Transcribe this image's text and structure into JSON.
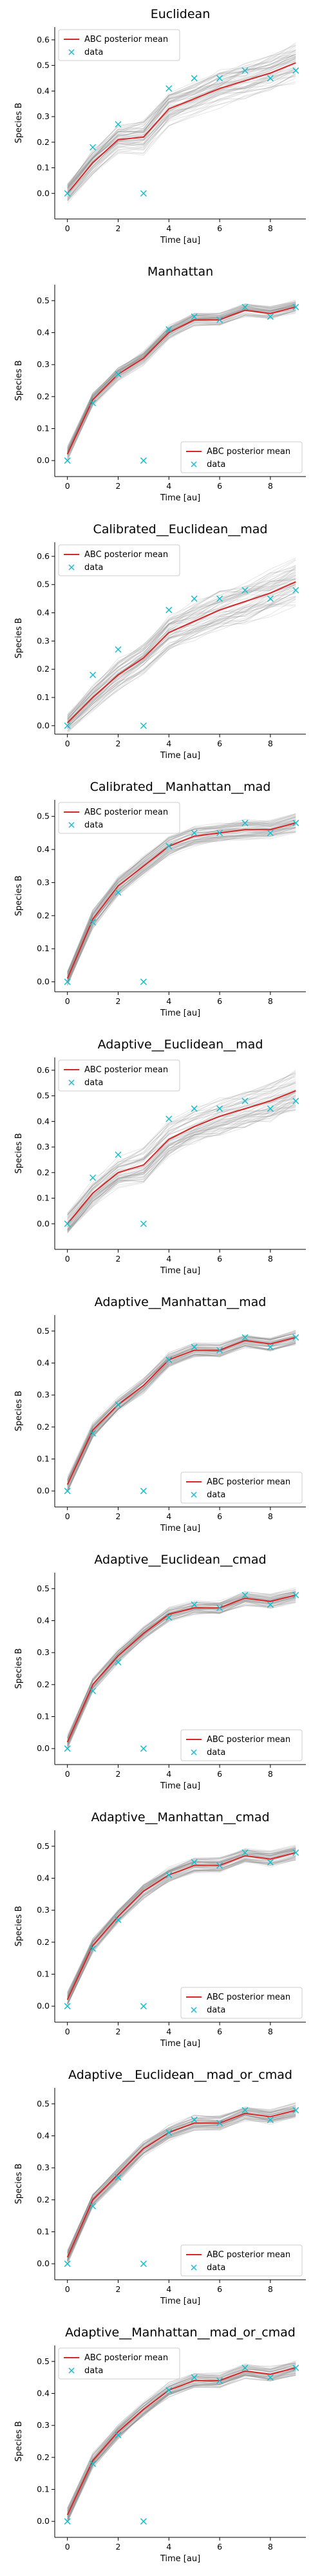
{
  "figure": {
    "xlabel": "Time [au]",
    "ylabel": "Species B",
    "legend_mean_label": "ABC posterior mean",
    "legend_data_label": "data",
    "colors": {
      "mean": "#d62728",
      "data": "#17becf",
      "samples": "#888888"
    }
  },
  "chart_data": [
    {
      "type": "line",
      "title": "Euclidean",
      "legend": "top-left",
      "ylim": [
        -0.1,
        0.65
      ],
      "yticks": [
        "0.0",
        "0.1",
        "0.2",
        "0.3",
        "0.4",
        "0.5",
        "0.6"
      ],
      "ytick_values": [
        0,
        0.1,
        0.2,
        0.3,
        0.4,
        0.5,
        0.6
      ],
      "xlim": [
        -0.5,
        9.4
      ],
      "xticks": [
        "0",
        "2",
        "4",
        "6",
        "8"
      ],
      "xtick_values": [
        0,
        2,
        4,
        6,
        8
      ],
      "x": [
        0,
        1,
        2,
        3,
        4,
        5,
        6,
        7,
        8,
        9
      ],
      "mean": [
        0.0,
        0.12,
        0.21,
        0.22,
        0.33,
        0.37,
        0.41,
        0.44,
        0.47,
        0.51
      ],
      "spread": [
        0.04,
        0.045,
        0.05,
        0.06,
        0.06,
        0.06,
        0.065,
        0.065,
        0.07,
        0.07
      ],
      "data": [
        0.0,
        0.18,
        0.27,
        0.0,
        0.41,
        0.45,
        0.45,
        0.48,
        0.45,
        0.48
      ]
    },
    {
      "type": "line",
      "title": "Manhattan",
      "legend": "bottom-right",
      "ylim": [
        -0.05,
        0.55
      ],
      "yticks": [
        "0.0",
        "0.1",
        "0.2",
        "0.3",
        "0.4",
        "0.5"
      ],
      "ytick_values": [
        0,
        0.1,
        0.2,
        0.3,
        0.4,
        0.5
      ],
      "xlim": [
        -0.5,
        9.4
      ],
      "xticks": [
        "0",
        "2",
        "4",
        "6",
        "8"
      ],
      "xtick_values": [
        0,
        2,
        4,
        6,
        8
      ],
      "x": [
        0,
        1,
        2,
        3,
        4,
        5,
        6,
        7,
        8,
        9
      ],
      "mean": [
        0.02,
        0.19,
        0.27,
        0.32,
        0.4,
        0.44,
        0.44,
        0.47,
        0.46,
        0.48
      ],
      "spread": [
        0.02,
        0.02,
        0.02,
        0.02,
        0.02,
        0.02,
        0.02,
        0.02,
        0.02,
        0.02
      ],
      "data": [
        0.0,
        0.18,
        0.27,
        0.0,
        0.41,
        0.45,
        0.44,
        0.48,
        0.45,
        0.48
      ]
    },
    {
      "type": "line",
      "title": "Calibrated__Euclidean__mad",
      "legend": "top-left",
      "ylim": [
        -0.03,
        0.65
      ],
      "yticks": [
        "0.0",
        "0.1",
        "0.2",
        "0.3",
        "0.4",
        "0.5",
        "0.6"
      ],
      "ytick_values": [
        0,
        0.1,
        0.2,
        0.3,
        0.4,
        0.5,
        0.6
      ],
      "xlim": [
        -0.5,
        9.4
      ],
      "xticks": [
        "0",
        "2",
        "4",
        "6",
        "8"
      ],
      "xtick_values": [
        0,
        2,
        4,
        6,
        8
      ],
      "x": [
        0,
        1,
        2,
        3,
        4,
        5,
        6,
        7,
        8,
        9
      ],
      "mean": [
        0.01,
        0.1,
        0.18,
        0.24,
        0.33,
        0.37,
        0.41,
        0.44,
        0.47,
        0.51
      ],
      "spread": [
        0.03,
        0.04,
        0.05,
        0.05,
        0.06,
        0.06,
        0.065,
        0.07,
        0.07,
        0.075
      ],
      "data": [
        0.0,
        0.18,
        0.27,
        0.0,
        0.41,
        0.45,
        0.45,
        0.48,
        0.45,
        0.48
      ]
    },
    {
      "type": "line",
      "title": "Calibrated__Manhattan__mad",
      "legend": "top-left",
      "ylim": [
        -0.03,
        0.55
      ],
      "yticks": [
        "0.0",
        "0.1",
        "0.2",
        "0.3",
        "0.4",
        "0.5"
      ],
      "ytick_values": [
        0,
        0.1,
        0.2,
        0.3,
        0.4,
        0.5
      ],
      "xlim": [
        -0.5,
        9.4
      ],
      "xticks": [
        "0",
        "2",
        "4",
        "6",
        "8"
      ],
      "xtick_values": [
        0,
        2,
        4,
        6,
        8
      ],
      "x": [
        0,
        1,
        2,
        3,
        4,
        5,
        6,
        7,
        8,
        9
      ],
      "mean": [
        0.01,
        0.19,
        0.29,
        0.35,
        0.41,
        0.44,
        0.45,
        0.46,
        0.46,
        0.48
      ],
      "spread": [
        0.02,
        0.025,
        0.025,
        0.025,
        0.025,
        0.025,
        0.025,
        0.025,
        0.025,
        0.025
      ],
      "data": [
        0.0,
        0.18,
        0.27,
        0.0,
        0.41,
        0.45,
        0.45,
        0.48,
        0.45,
        0.48
      ]
    },
    {
      "type": "line",
      "title": "Adaptive__Euclidean__mad",
      "legend": "top-left",
      "ylim": [
        -0.1,
        0.65
      ],
      "yticks": [
        "0.0",
        "0.1",
        "0.2",
        "0.3",
        "0.4",
        "0.5",
        "0.6"
      ],
      "ytick_values": [
        0,
        0.1,
        0.2,
        0.3,
        0.4,
        0.5,
        0.6
      ],
      "xlim": [
        -0.5,
        9.4
      ],
      "xticks": [
        "0",
        "2",
        "4",
        "6",
        "8"
      ],
      "xtick_values": [
        0,
        2,
        4,
        6,
        8
      ],
      "x": [
        0,
        1,
        2,
        3,
        4,
        5,
        6,
        7,
        8,
        9
      ],
      "mean": [
        0.0,
        0.12,
        0.2,
        0.23,
        0.33,
        0.38,
        0.42,
        0.45,
        0.48,
        0.52
      ],
      "spread": [
        0.04,
        0.045,
        0.05,
        0.06,
        0.06,
        0.06,
        0.065,
        0.065,
        0.07,
        0.07
      ],
      "data": [
        0.0,
        0.18,
        0.27,
        0.0,
        0.41,
        0.45,
        0.45,
        0.48,
        0.45,
        0.48
      ]
    },
    {
      "type": "line",
      "title": "Adaptive__Manhattan__mad",
      "legend": "bottom-right",
      "ylim": [
        -0.05,
        0.55
      ],
      "yticks": [
        "0.0",
        "0.1",
        "0.2",
        "0.3",
        "0.4",
        "0.5"
      ],
      "ytick_values": [
        0,
        0.1,
        0.2,
        0.3,
        0.4,
        0.5
      ],
      "xlim": [
        -0.5,
        9.4
      ],
      "xticks": [
        "0",
        "2",
        "4",
        "6",
        "8"
      ],
      "xtick_values": [
        0,
        2,
        4,
        6,
        8
      ],
      "x": [
        0,
        1,
        2,
        3,
        4,
        5,
        6,
        7,
        8,
        9
      ],
      "mean": [
        0.02,
        0.19,
        0.27,
        0.33,
        0.41,
        0.44,
        0.44,
        0.47,
        0.46,
        0.48
      ],
      "spread": [
        0.02,
        0.02,
        0.02,
        0.02,
        0.02,
        0.02,
        0.02,
        0.02,
        0.02,
        0.02
      ],
      "data": [
        0.0,
        0.18,
        0.27,
        0.0,
        0.41,
        0.45,
        0.44,
        0.48,
        0.45,
        0.48
      ]
    },
    {
      "type": "line",
      "title": "Adaptive__Euclidean__cmad",
      "legend": "bottom-right",
      "ylim": [
        -0.05,
        0.55
      ],
      "yticks": [
        "0.0",
        "0.1",
        "0.2",
        "0.3",
        "0.4",
        "0.5"
      ],
      "ytick_values": [
        0,
        0.1,
        0.2,
        0.3,
        0.4,
        0.5
      ],
      "xlim": [
        -0.5,
        9.4
      ],
      "xticks": [
        "0",
        "2",
        "4",
        "6",
        "8"
      ],
      "xtick_values": [
        0,
        2,
        4,
        6,
        8
      ],
      "x": [
        0,
        1,
        2,
        3,
        4,
        5,
        6,
        7,
        8,
        9
      ],
      "mean": [
        0.02,
        0.2,
        0.29,
        0.36,
        0.42,
        0.44,
        0.44,
        0.47,
        0.46,
        0.48
      ],
      "spread": [
        0.02,
        0.02,
        0.02,
        0.02,
        0.02,
        0.02,
        0.02,
        0.02,
        0.02,
        0.02
      ],
      "data": [
        0.0,
        0.18,
        0.27,
        0.0,
        0.41,
        0.45,
        0.44,
        0.48,
        0.45,
        0.48
      ]
    },
    {
      "type": "line",
      "title": "Adaptive__Manhattan__cmad",
      "legend": "bottom-right",
      "ylim": [
        -0.05,
        0.55
      ],
      "yticks": [
        "0.0",
        "0.1",
        "0.2",
        "0.3",
        "0.4",
        "0.5"
      ],
      "ytick_values": [
        0,
        0.1,
        0.2,
        0.3,
        0.4,
        0.5
      ],
      "xlim": [
        -0.5,
        9.4
      ],
      "xticks": [
        "0",
        "2",
        "4",
        "6",
        "8"
      ],
      "xtick_values": [
        0,
        2,
        4,
        6,
        8
      ],
      "x": [
        0,
        1,
        2,
        3,
        4,
        5,
        6,
        7,
        8,
        9
      ],
      "mean": [
        0.02,
        0.19,
        0.28,
        0.36,
        0.41,
        0.44,
        0.44,
        0.47,
        0.46,
        0.48
      ],
      "spread": [
        0.02,
        0.02,
        0.02,
        0.02,
        0.02,
        0.02,
        0.02,
        0.02,
        0.02,
        0.02
      ],
      "data": [
        0.0,
        0.18,
        0.27,
        0.0,
        0.41,
        0.45,
        0.44,
        0.48,
        0.45,
        0.48
      ]
    },
    {
      "type": "line",
      "title": "Adaptive__Euclidean__mad_or_cmad",
      "legend": "bottom-right",
      "ylim": [
        -0.05,
        0.55
      ],
      "yticks": [
        "0.0",
        "0.1",
        "0.2",
        "0.3",
        "0.4",
        "0.5"
      ],
      "ytick_values": [
        0,
        0.1,
        0.2,
        0.3,
        0.4,
        0.5
      ],
      "xlim": [
        -0.5,
        9.4
      ],
      "xticks": [
        "0",
        "2",
        "4",
        "6",
        "8"
      ],
      "xtick_values": [
        0,
        2,
        4,
        6,
        8
      ],
      "x": [
        0,
        1,
        2,
        3,
        4,
        5,
        6,
        7,
        8,
        9
      ],
      "mean": [
        0.02,
        0.2,
        0.28,
        0.36,
        0.41,
        0.44,
        0.44,
        0.47,
        0.46,
        0.48
      ],
      "spread": [
        0.02,
        0.02,
        0.02,
        0.02,
        0.02,
        0.02,
        0.02,
        0.02,
        0.02,
        0.02
      ],
      "data": [
        0.0,
        0.18,
        0.27,
        0.0,
        0.41,
        0.45,
        0.44,
        0.48,
        0.45,
        0.48
      ]
    },
    {
      "type": "line",
      "title": "Adaptive__Manhattan__mad_or_cmad",
      "legend": "top-left",
      "ylim": [
        -0.05,
        0.55
      ],
      "yticks": [
        "0.0",
        "0.1",
        "0.2",
        "0.3",
        "0.4",
        "0.5"
      ],
      "ytick_values": [
        0,
        0.1,
        0.2,
        0.3,
        0.4,
        0.5
      ],
      "xlim": [
        -0.5,
        9.4
      ],
      "xticks": [
        "0",
        "2",
        "4",
        "6",
        "8"
      ],
      "xtick_values": [
        0,
        2,
        4,
        6,
        8
      ],
      "x": [
        0,
        1,
        2,
        3,
        4,
        5,
        6,
        7,
        8,
        9
      ],
      "mean": [
        0.02,
        0.19,
        0.28,
        0.35,
        0.41,
        0.44,
        0.44,
        0.47,
        0.46,
        0.48
      ],
      "spread": [
        0.02,
        0.02,
        0.02,
        0.02,
        0.02,
        0.02,
        0.02,
        0.02,
        0.02,
        0.02
      ],
      "data": [
        0.0,
        0.18,
        0.27,
        0.0,
        0.41,
        0.45,
        0.44,
        0.48,
        0.45,
        0.48
      ]
    }
  ]
}
